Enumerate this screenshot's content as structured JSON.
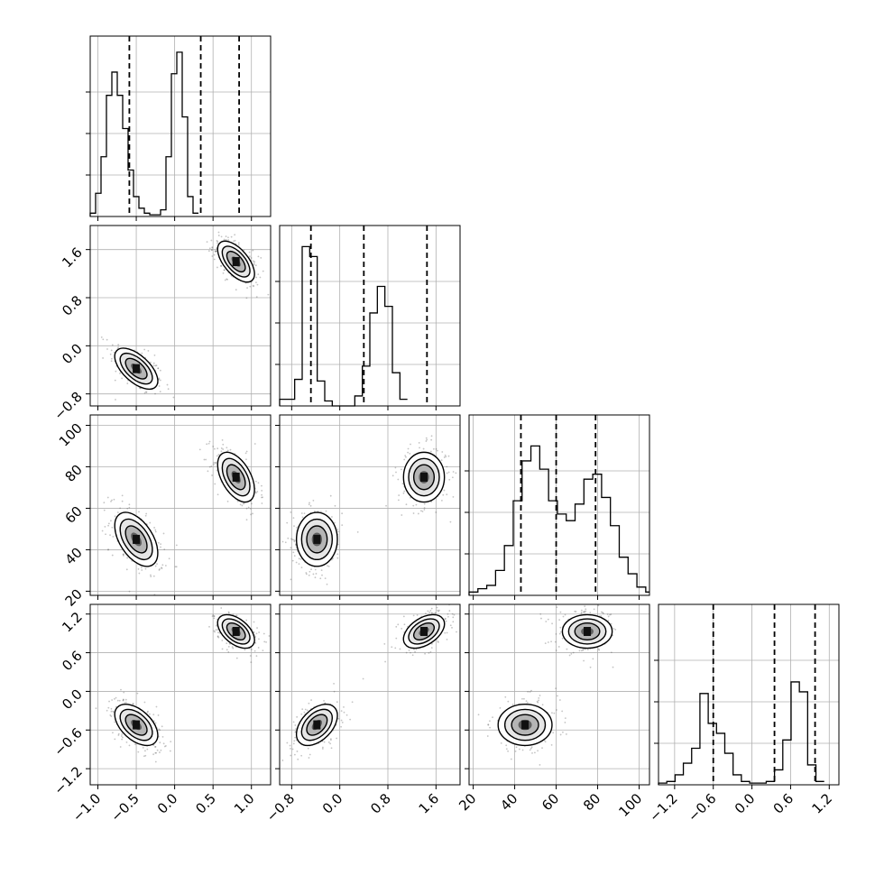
{
  "chart_data": {
    "type": "corner",
    "parameters": 4,
    "grid": true,
    "axes": [
      {
        "range": [
          -1.1,
          1.25
        ],
        "ticks": [
          -1.0,
          -0.5,
          0.0,
          0.5,
          1.0
        ],
        "tick_labels": [
          "−1.0",
          "−0.5",
          "0.0",
          "0.5",
          "1.0"
        ]
      },
      {
        "range": [
          -1.0,
          2.0
        ],
        "ticks": [
          -0.8,
          0.0,
          0.8,
          1.6
        ],
        "tick_labels": [
          "−0.8",
          "0.0",
          "0.8",
          "1.6"
        ]
      },
      {
        "range": [
          18,
          105
        ],
        "ticks": [
          20,
          40,
          60,
          80,
          100
        ],
        "tick_labels": [
          "20",
          "40",
          "60",
          "80",
          "100"
        ]
      },
      {
        "range": [
          -1.45,
          1.35
        ],
        "ticks": [
          -1.2,
          -0.6,
          0.0,
          0.6,
          1.2
        ],
        "tick_labels": [
          "−1.2",
          "−0.6",
          "0.0",
          "0.6",
          "1.2"
        ]
      }
    ],
    "histograms": [
      {
        "bin_start": -1.1,
        "bin_width": 0.0705,
        "counts": [
          0.02,
          0.14,
          0.36,
          0.73,
          0.87,
          0.73,
          0.53,
          0.28,
          0.12,
          0.05,
          0.02,
          0.01,
          0.01,
          0.04,
          0.36,
          0.86,
          0.99,
          0.6,
          0.12,
          0.02
        ],
        "quantiles": [
          -0.59,
          0.34,
          0.84
        ]
      },
      {
        "bin_start": -1.0,
        "bin_width": 0.125,
        "counts": [
          0.04,
          0.04,
          0.16,
          0.96,
          0.9,
          0.15,
          0.03,
          0.0,
          0.0,
          0.0,
          0.06,
          0.24,
          0.56,
          0.72,
          0.6,
          0.2,
          0.04
        ],
        "quantiles": [
          -0.48,
          0.4,
          1.45
        ]
      },
      {
        "bin_start": 18,
        "bin_width": 4.26,
        "counts": [
          0.02,
          0.04,
          0.06,
          0.15,
          0.3,
          0.57,
          0.81,
          0.9,
          0.76,
          0.57,
          0.49,
          0.45,
          0.55,
          0.7,
          0.73,
          0.59,
          0.42,
          0.23,
          0.13,
          0.05,
          0.02
        ],
        "quantiles": [
          43,
          60,
          79
        ]
      },
      {
        "bin_start": -1.45,
        "bin_width": 0.1286,
        "counts": [
          0.01,
          0.02,
          0.06,
          0.13,
          0.22,
          0.55,
          0.37,
          0.31,
          0.19,
          0.06,
          0.02,
          0.01,
          0.01,
          0.02,
          0.09,
          0.27,
          0.62,
          0.56,
          0.12,
          0.02
        ],
        "quantiles": [
          -0.6,
          0.35,
          0.98
        ]
      }
    ],
    "clusters": [
      {
        "center": [
          -0.5,
          -0.38,
          45,
          -0.52
        ],
        "sd": [
          0.14,
          0.17,
          6.5,
          0.16
        ],
        "weight": 0.5
      },
      {
        "center": [
          0.8,
          1.4,
          75,
          0.93
        ],
        "sd": [
          0.12,
          0.17,
          6.0,
          0.13
        ],
        "weight": 0.5
      }
    ],
    "correlations": {
      "1-0": -0.6,
      "2-0": -0.5,
      "2-1": 0.0,
      "3-0": -0.5,
      "3-1": 0.45,
      "3-2": 0.0
    }
  }
}
